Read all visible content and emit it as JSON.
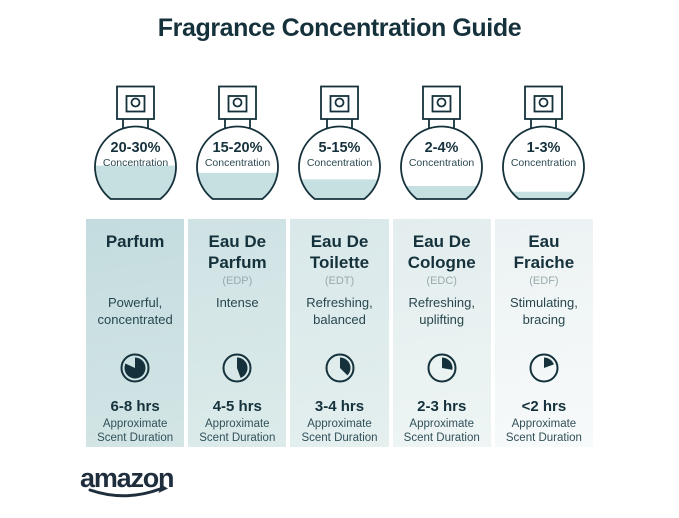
{
  "title": "Fragrance Concentration Guide",
  "brand": "amazon",
  "colors": {
    "dark": "#15323c",
    "liquid": "#c6dfe0",
    "abbr_gray": "#9aa9ad",
    "logo": "#1f2e3d",
    "column_gradients": [
      [
        "#c4dcdf",
        "#d3e5e5"
      ],
      [
        "#cfe2e4",
        "#dcebea"
      ],
      [
        "#d9e8ea",
        "#e4efee"
      ],
      [
        "#e3edee",
        "#eef5f4"
      ],
      [
        "#ecf2f3",
        "#f7fafa"
      ]
    ]
  },
  "columns": [
    {
      "concentration": "20-30%",
      "concentration_label": "Concentration",
      "fill_percent": 46,
      "name": "Parfum",
      "abbr": "",
      "description": "Powerful,\nconcentrated",
      "duration": "6-8 hrs",
      "duration_label": "Approximate\nScent Duration",
      "clock_fill_degrees": 295
    },
    {
      "concentration": "15-20%",
      "concentration_label": "Concentration",
      "fill_percent": 36,
      "name": "Eau De\nParfum",
      "abbr": "(EDP)",
      "description": "Intense",
      "duration": "4-5 hrs",
      "duration_label": "Approximate\nScent Duration",
      "clock_fill_degrees": 160
    },
    {
      "concentration": "5-15%",
      "concentration_label": "Concentration",
      "fill_percent": 27,
      "name": "Eau De\nToilette",
      "abbr": "(EDT)",
      "description": "Refreshing,\nbalanced",
      "duration": "3-4 hrs",
      "duration_label": "Approximate\nScent Duration",
      "clock_fill_degrees": 135
    },
    {
      "concentration": "2-4%",
      "concentration_label": "Concentration",
      "fill_percent": 18,
      "name": "Eau De\nCologne",
      "abbr": "(EDC)",
      "description": "Refreshing,\nuplifting",
      "duration": "2-3 hrs",
      "duration_label": "Approximate\nScent Duration",
      "clock_fill_degrees": 100
    },
    {
      "concentration": "1-3%",
      "concentration_label": "Concentration",
      "fill_percent": 10,
      "name": "Eau\nFraiche",
      "abbr": "(EDF)",
      "description": "Stimulating,\nbracing",
      "duration": "<2 hrs",
      "duration_label": "Approximate\nScent Duration",
      "clock_fill_degrees": 70
    }
  ]
}
